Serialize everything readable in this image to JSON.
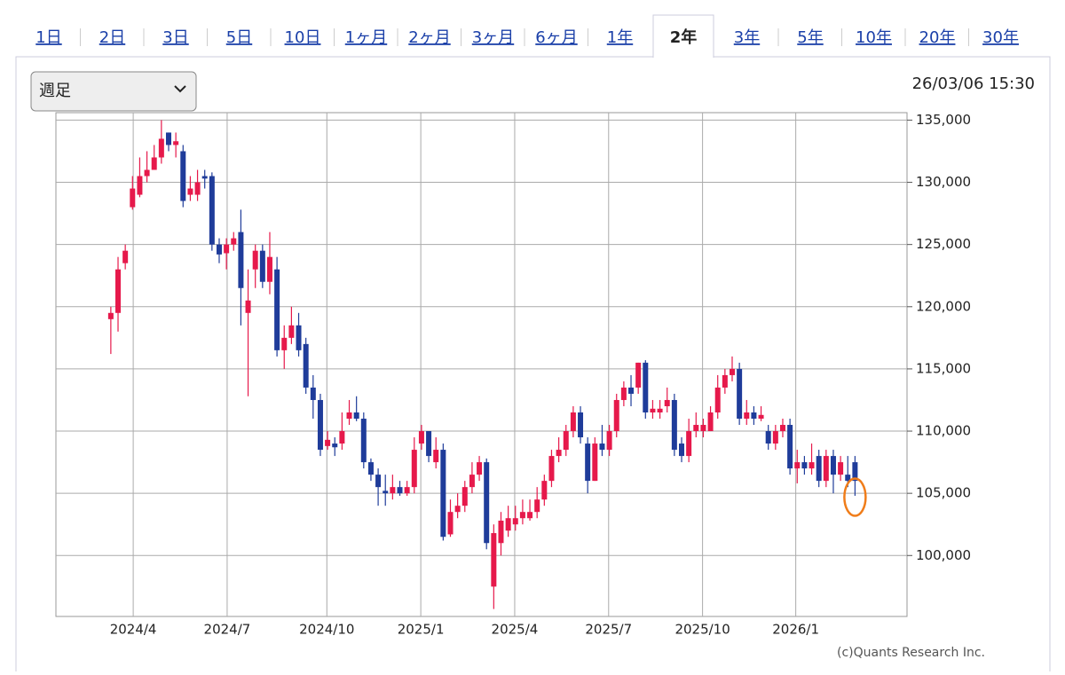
{
  "tabs": [
    "1日",
    "2日",
    "3日",
    "5日",
    "10日",
    "1ヶ月",
    "2ヶ月",
    "3ヶ月",
    "6ヶ月",
    "1年",
    "2年",
    "3年",
    "5年",
    "10年",
    "20年",
    "30年"
  ],
  "selected_tab": 10,
  "period_select": "週足",
  "timestamp": "26/03/06 15:30",
  "copyright": "(c)Quants Research Inc.",
  "chart_data": {
    "type": "candlestick",
    "up_color": "#e6194b",
    "down_color": "#1f3c9a",
    "grid": true,
    "ylim": [
      95100,
      135600
    ],
    "yticks": [
      {
        "value": 100000,
        "label": "100,000"
      },
      {
        "value": 105000,
        "label": "105,000"
      },
      {
        "value": 110000,
        "label": "110,000"
      },
      {
        "value": 115000,
        "label": "115,000"
      },
      {
        "value": 120000,
        "label": "120,000"
      },
      {
        "value": 125000,
        "label": "125,000"
      },
      {
        "value": 130000,
        "label": "130,000"
      },
      {
        "value": 135000,
        "label": "135,000"
      }
    ],
    "xlim": [
      -7.6,
      110.2
    ],
    "xticks": [
      {
        "value": 3.1,
        "label": "2024/4"
      },
      {
        "value": 16.1,
        "label": "2024/7"
      },
      {
        "value": 29.9,
        "label": "2024/10"
      },
      {
        "value": 42.9,
        "label": "2025/1"
      },
      {
        "value": 55.9,
        "label": "2025/4"
      },
      {
        "value": 68.9,
        "label": "2025/7"
      },
      {
        "value": 81.9,
        "label": "2025/10"
      },
      {
        "value": 94.8,
        "label": "2026/1"
      }
    ],
    "candles": [
      [
        119000,
        120000,
        116200,
        119500
      ],
      [
        119500,
        124000,
        118000,
        123000
      ],
      [
        123500,
        125000,
        123000,
        124500
      ],
      [
        128000,
        130500,
        127800,
        129500
      ],
      [
        129000,
        132000,
        128800,
        130500
      ],
      [
        130500,
        132500,
        130000,
        131000
      ],
      [
        131000,
        133000,
        131000,
        132000
      ],
      [
        132000,
        135000,
        131500,
        133500
      ],
      [
        134000,
        134000,
        132500,
        133000
      ],
      [
        133000,
        134000,
        132000,
        133300
      ],
      [
        132500,
        133000,
        128000,
        128500
      ],
      [
        129000,
        130500,
        128500,
        129500
      ],
      [
        129000,
        131000,
        128500,
        130000
      ],
      [
        130500,
        131000,
        129500,
        130300
      ],
      [
        130500,
        130800,
        124500,
        125000
      ],
      [
        125000,
        125500,
        123500,
        124200
      ],
      [
        124300,
        125500,
        123000,
        125000
      ],
      [
        125000,
        126000,
        124500,
        125500
      ],
      [
        126000,
        127800,
        118500,
        121500
      ],
      [
        119500,
        123000,
        112800,
        120500
      ],
      [
        123000,
        125000,
        121500,
        124500
      ],
      [
        124500,
        125000,
        121500,
        122000
      ],
      [
        122000,
        126000,
        121000,
        124000
      ],
      [
        123000,
        124000,
        116000,
        116500
      ],
      [
        116500,
        118500,
        115000,
        117500
      ],
      [
        117500,
        120000,
        117000,
        118500
      ],
      [
        118500,
        119500,
        116000,
        116500
      ],
      [
        117000,
        117500,
        113000,
        113500
      ],
      [
        113500,
        114500,
        111000,
        112500
      ],
      [
        112500,
        113000,
        108000,
        108500
      ],
      [
        108800,
        110000,
        108500,
        109300
      ],
      [
        109000,
        109500,
        108000,
        108700
      ],
      [
        109000,
        111500,
        108500,
        110000
      ],
      [
        111000,
        112500,
        110500,
        111500
      ],
      [
        111500,
        112800,
        110800,
        111000
      ],
      [
        111000,
        111500,
        107000,
        107500
      ],
      [
        107500,
        107800,
        106000,
        106500
      ],
      [
        106500,
        107000,
        104000,
        105500
      ],
      [
        105200,
        106500,
        104000,
        105000
      ],
      [
        105000,
        106500,
        104500,
        105500
      ],
      [
        105500,
        106000,
        104800,
        105000
      ],
      [
        105000,
        106000,
        104800,
        105500
      ],
      [
        105500,
        109500,
        105000,
        108500
      ],
      [
        109000,
        110500,
        108500,
        110000
      ],
      [
        110000,
        110000,
        107500,
        108000
      ],
      [
        107500,
        109500,
        107000,
        108500
      ],
      [
        108500,
        109000,
        101200,
        101500
      ],
      [
        101700,
        104500,
        101500,
        103500
      ],
      [
        103500,
        105000,
        103000,
        104000
      ],
      [
        104000,
        106000,
        103500,
        105500
      ],
      [
        105500,
        107500,
        105000,
        106500
      ],
      [
        106500,
        108000,
        106000,
        107500
      ],
      [
        107500,
        107800,
        100500,
        101000
      ],
      [
        97500,
        102500,
        95700,
        101800
      ],
      [
        101000,
        103500,
        100000,
        102800
      ],
      [
        102000,
        104000,
        101500,
        103000
      ],
      [
        102500,
        104000,
        102000,
        103000
      ],
      [
        103000,
        104500,
        102500,
        103500
      ],
      [
        103000,
        104500,
        102800,
        103500
      ],
      [
        103500,
        105500,
        103000,
        104500
      ],
      [
        104500,
        106500,
        104000,
        106000
      ],
      [
        106000,
        108500,
        105500,
        108000
      ],
      [
        108000,
        109500,
        107500,
        108500
      ],
      [
        108500,
        110500,
        108000,
        110000
      ],
      [
        110000,
        112000,
        109500,
        111500
      ],
      [
        111500,
        112000,
        109000,
        109500
      ],
      [
        109000,
        109500,
        105000,
        106000
      ],
      [
        106000,
        109500,
        106000,
        109000
      ],
      [
        109000,
        110500,
        108000,
        108500
      ],
      [
        108500,
        110500,
        108000,
        110000
      ],
      [
        110000,
        113000,
        109500,
        112500
      ],
      [
        112500,
        114000,
        112000,
        113500
      ],
      [
        113500,
        114500,
        112000,
        113000
      ],
      [
        113500,
        115500,
        113000,
        115500
      ],
      [
        115500,
        115700,
        111000,
        111500
      ],
      [
        111500,
        112500,
        111000,
        111800
      ],
      [
        111500,
        112500,
        111000,
        111800
      ],
      [
        112000,
        113500,
        111500,
        112500
      ],
      [
        112500,
        113000,
        108000,
        108500
      ],
      [
        109000,
        109500,
        107500,
        108000
      ],
      [
        108000,
        111000,
        107500,
        110000
      ],
      [
        110000,
        111500,
        109500,
        110500
      ],
      [
        110000,
        111000,
        109500,
        110500
      ],
      [
        110000,
        112000,
        110000,
        111500
      ],
      [
        111500,
        114500,
        111000,
        113500
      ],
      [
        113500,
        115000,
        113000,
        114500
      ],
      [
        114500,
        116000,
        114000,
        115000
      ],
      [
        115000,
        115500,
        110500,
        111000
      ],
      [
        111000,
        112500,
        110500,
        111500
      ],
      [
        111500,
        112000,
        110500,
        111000
      ],
      [
        111000,
        112000,
        110800,
        111300
      ],
      [
        110000,
        110500,
        108500,
        109000
      ],
      [
        109000,
        110500,
        108500,
        110000
      ],
      [
        110000,
        111000,
        109500,
        110500
      ],
      [
        110500,
        111000,
        106500,
        107000
      ],
      [
        107000,
        108500,
        105800,
        107500
      ],
      [
        107500,
        108000,
        106500,
        107000
      ],
      [
        107000,
        109000,
        106500,
        107500
      ],
      [
        108000,
        108500,
        105500,
        106000
      ],
      [
        106000,
        108500,
        105500,
        108000
      ],
      [
        108000,
        108500,
        105000,
        106500
      ],
      [
        106500,
        108000,
        106000,
        107500
      ],
      [
        106500,
        108000,
        105500,
        106000
      ],
      [
        107500,
        108000,
        104800,
        106000
      ]
    ]
  }
}
